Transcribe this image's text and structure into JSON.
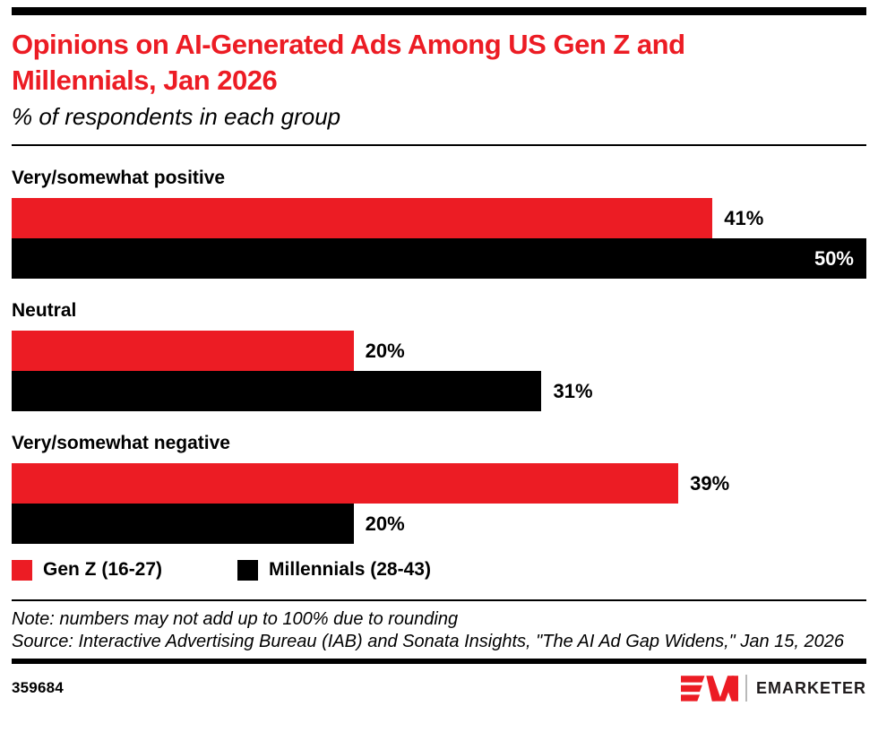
{
  "title": "Opinions on AI-Generated Ads Among US Gen Z and Millennials, Jan 2026",
  "subtitle": "% of respondents in each group",
  "chart_data": {
    "type": "bar",
    "orientation": "horizontal",
    "unit": "%",
    "categories": [
      "Very/somewhat positive",
      "Neutral",
      "Very/somewhat negative"
    ],
    "series": [
      {
        "name": "Gen Z (16-27)",
        "color": "#EC1C24",
        "values": [
          41,
          20,
          39
        ]
      },
      {
        "name": "Millennials (28-43)",
        "color": "#000000",
        "values": [
          50,
          31,
          20
        ]
      }
    ],
    "xlim": [
      0,
      50
    ],
    "grid": false,
    "legend_position": "bottom",
    "value_label_style": "end-of-bar, white inside bar when bar reaches right edge"
  },
  "notes": {
    "note": "Note: numbers may not add up to 100% due to rounding",
    "source": "Source: Interactive Advertising Bureau (IAB) and Sonata Insights, \"The AI Ad Gap Widens,\" Jan 15, 2026"
  },
  "footer": {
    "chart_id": "359684",
    "brand": "EMARKETER",
    "logo": "em-logo"
  },
  "colors": {
    "accent_red": "#EC1C24",
    "bar_black": "#000000",
    "text": "#000000",
    "brand_text": "#1f1b1c"
  }
}
